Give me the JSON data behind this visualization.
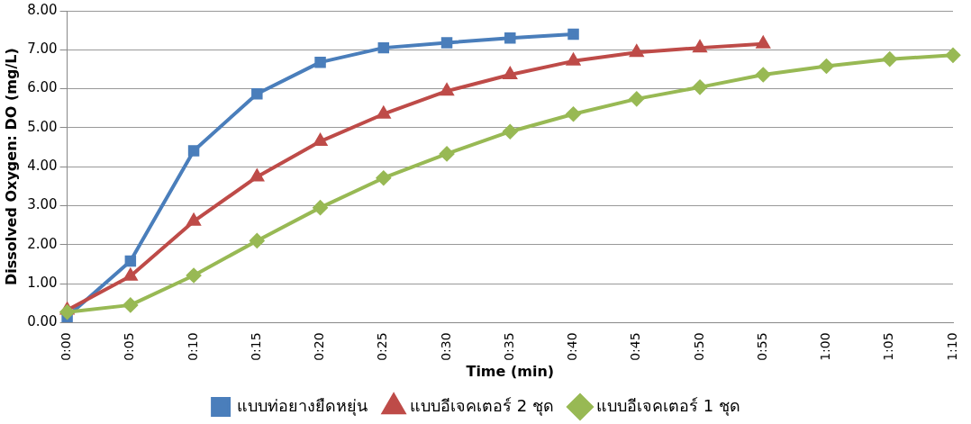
{
  "chart_data": {
    "type": "line",
    "xlabel": "Time (min)",
    "ylabel": "Dissolved Oxygen: DO (mg/L)",
    "categories": [
      "0:00",
      "0:05",
      "0:10",
      "0:15",
      "0:20",
      "0:25",
      "0:30",
      "0:35",
      "0:40",
      "0:45",
      "0:50",
      "0:55",
      "1:00",
      "1:05",
      "1:10"
    ],
    "series": [
      {
        "name": "แบบท่อยางยืดหยุ่น",
        "color": "#4a7ebb",
        "marker": "square",
        "values": [
          0.15,
          1.58,
          4.41,
          5.87,
          6.68,
          7.05,
          7.18,
          7.3,
          7.4,
          null,
          null,
          null,
          null,
          null,
          null
        ]
      },
      {
        "name": "แบบอีเจคเตอร์ 2 ชุด",
        "color": "#be4b48",
        "marker": "triangle",
        "values": [
          0.32,
          1.19,
          2.6,
          3.74,
          4.65,
          5.35,
          5.94,
          6.36,
          6.71,
          6.93,
          7.05,
          7.15,
          null,
          null,
          null
        ]
      },
      {
        "name": "แบบอีเจคเตอร์ 1 ชุด",
        "color": "#98b954",
        "marker": "diamond",
        "values": [
          0.27,
          0.45,
          1.21,
          2.1,
          2.95,
          3.71,
          4.33,
          4.9,
          5.35,
          5.74,
          6.04,
          6.36,
          6.58,
          6.76,
          6.86
        ]
      }
    ],
    "ylim": [
      0,
      8
    ],
    "yticks": [
      {
        "value": 0,
        "label": "0.00"
      },
      {
        "value": 1,
        "label": "1.00"
      },
      {
        "value": 2,
        "label": "2.00"
      },
      {
        "value": 3,
        "label": "3.00"
      },
      {
        "value": 4,
        "label": "4.00"
      },
      {
        "value": 5,
        "label": "5.00"
      },
      {
        "value": 6,
        "label": "6.00"
      },
      {
        "value": 7,
        "label": "7.00"
      },
      {
        "value": 8,
        "label": "8.00"
      }
    ],
    "grid": "y",
    "legend": "bottom",
    "line_style": "solid"
  }
}
